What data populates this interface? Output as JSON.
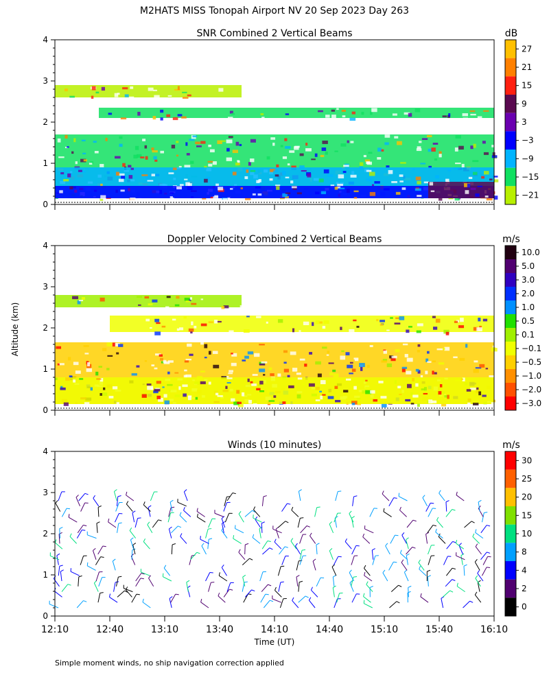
{
  "page_title": "M2HATS MISS Tonopah Airport NV  20 Sep 2023 Day 263",
  "y_axis_label": "Altitude (km)",
  "x_axis_label": "Time (UT)",
  "footnote": "Simple moment winds, no ship navigation correction applied",
  "chart_data": [
    {
      "type": "heatmap",
      "title": "SNR Combined 2 Vertical Beams",
      "ylim": [
        0,
        4
      ],
      "yticks": [
        0,
        1,
        2,
        3,
        4
      ],
      "colorbar": {
        "unit": "dB",
        "ticks": [
          "27",
          "21",
          "15",
          "9",
          "3",
          "−3",
          "−9",
          "−15",
          "−21"
        ],
        "colors": [
          "#ffc000",
          "#ff8000",
          "#ff2010",
          "#5a0a50",
          "#6a00b0",
          "#0000ff",
          "#00b4ff",
          "#10e060",
          "#b8f000"
        ]
      },
      "layers": [
        {
          "name": "lower-layer",
          "x0": 0.0,
          "x1": 4.0,
          "y0": 0.15,
          "y1": 1.7,
          "color": "#10e060"
        },
        {
          "name": "lower-core",
          "x0": 0.0,
          "x1": 4.0,
          "y0": 0.15,
          "y1": 0.9,
          "color": "#00b4ff"
        },
        {
          "name": "surface-echo",
          "x0": 0.0,
          "x1": 4.0,
          "y0": 0.15,
          "y1": 0.45,
          "color": "#0000ff"
        },
        {
          "name": "late-surface-echo",
          "x0": 3.4,
          "x1": 4.0,
          "y0": 0.15,
          "y1": 0.55,
          "color": "#5a0a50"
        },
        {
          "name": "mid-layer",
          "x0": 0.4,
          "x1": 4.0,
          "y0": 2.1,
          "y1": 2.35,
          "color": "#10e060"
        },
        {
          "name": "upper-layer",
          "x0": 0.0,
          "x1": 1.7,
          "y0": 2.6,
          "y1": 2.9,
          "color": "#b8f000"
        }
      ]
    },
    {
      "type": "heatmap",
      "title": "Doppler Velocity Combined 2 Vertical Beams",
      "ylim": [
        0,
        4
      ],
      "yticks": [
        0,
        1,
        2,
        3,
        4
      ],
      "colorbar": {
        "unit": "m/s",
        "ticks": [
          "10.0",
          "5.0",
          "3.0",
          "2.0",
          "1.0",
          "0.5",
          "0.1",
          "−0.1",
          "−0.5",
          "−1.0",
          "−2.0",
          "−3.0"
        ],
        "colors": [
          "#200010",
          "#500070",
          "#3000c0",
          "#0030ff",
          "#0090ff",
          "#20e000",
          "#a0f000",
          "#f0ff00",
          "#ffd000",
          "#ff9000",
          "#ff5000",
          "#ff0000"
        ]
      },
      "layers": [
        {
          "name": "lower-layer",
          "x0": 0.0,
          "x1": 4.0,
          "y0": 0.15,
          "y1": 1.65,
          "color": "#ffd000"
        },
        {
          "name": "lower-core",
          "x0": 0.0,
          "x1": 4.0,
          "y0": 0.15,
          "y1": 0.8,
          "color": "#f0ff00"
        },
        {
          "name": "mid-layer",
          "x0": 0.5,
          "x1": 4.0,
          "y0": 1.9,
          "y1": 2.3,
          "color": "#f0ff00"
        },
        {
          "name": "upper-layer",
          "x0": 0.0,
          "x1": 1.7,
          "y0": 2.5,
          "y1": 2.8,
          "color": "#a0f000"
        }
      ]
    },
    {
      "type": "scatter",
      "title": "Winds (10 minutes)",
      "ylim": [
        0,
        4
      ],
      "yticks": [
        0,
        1,
        2,
        3,
        4
      ],
      "xlim": [
        "12:10",
        "16:10"
      ],
      "xticks": [
        "12:10",
        "12:40",
        "13:10",
        "13:40",
        "14:10",
        "14:40",
        "15:10",
        "15:40",
        "16:10"
      ],
      "colorbar": {
        "unit": "m/s",
        "ticks": [
          "30",
          "25",
          "20",
          "15",
          "10",
          "8",
          "4",
          "2",
          "0"
        ],
        "colors": [
          "#ff0000",
          "#ff6000",
          "#ffc000",
          "#80e000",
          "#00e080",
          "#00a0ff",
          "#0000ff",
          "#500070",
          "#000000"
        ]
      }
    }
  ]
}
